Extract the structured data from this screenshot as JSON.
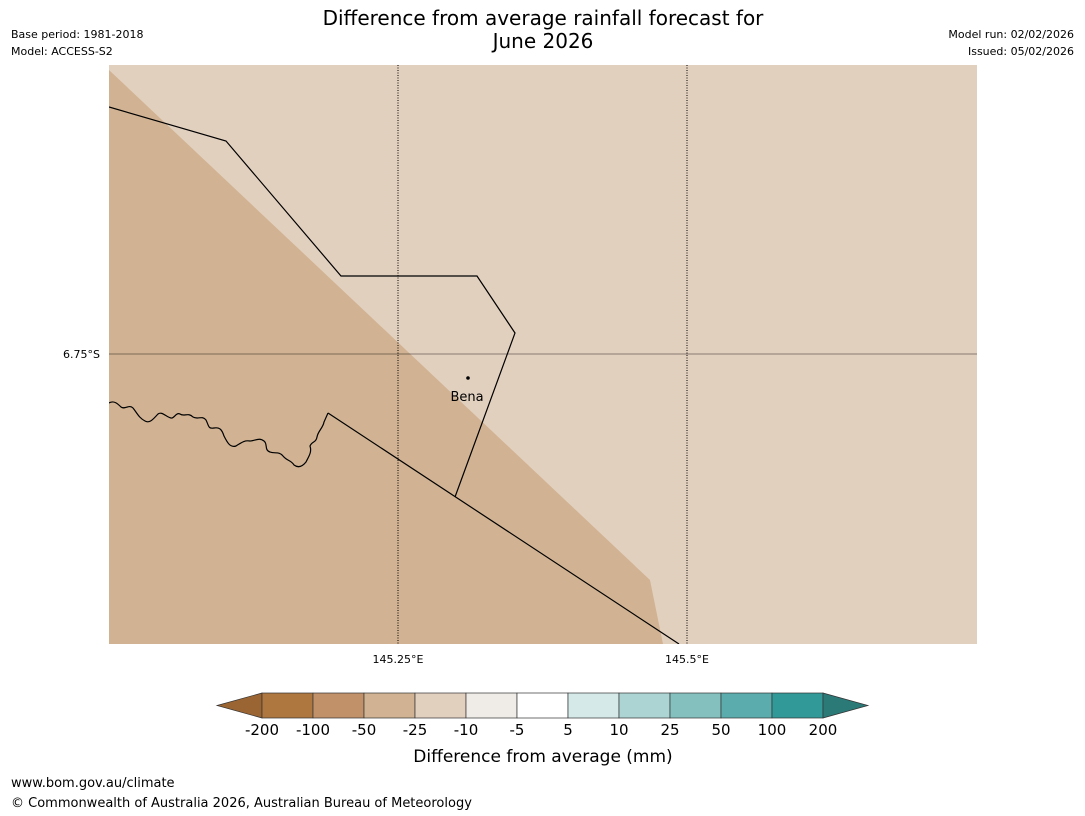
{
  "header": {
    "title_line1": "Difference from average rainfall forecast for",
    "title_line2": "June 2026",
    "base_period": "Base period: 1981-2018",
    "model": "Model: ACCESS-S2",
    "model_run": "Model run: 02/02/2026",
    "issued": "Issued: 05/02/2026"
  },
  "map": {
    "latitude_labels": [
      "6.75°S"
    ],
    "longitude_labels": [
      "145.25°E",
      "145.5°E"
    ],
    "places": [
      {
        "name": "Bena"
      }
    ],
    "colors": {
      "range_-50_to_-25": "#d1b393",
      "range_-25_to_-10": "#e2d0bf",
      "boundary_line": "#000000",
      "gridline": "#000000"
    }
  },
  "legend": {
    "title": "Difference from average (mm)",
    "tick_labels": [
      "-200",
      "-100",
      "-50",
      "-25",
      "-10",
      "-5",
      "5",
      "10",
      "25",
      "50",
      "100",
      "200"
    ],
    "colors": [
      "#9a6532",
      "#ae7740",
      "#c1926a",
      "#d1b393",
      "#e2d0bf",
      "#efebe6",
      "#ffffff",
      "#d5e9e9",
      "#acd4d3",
      "#84c1be",
      "#5aadac",
      "#319a98",
      "#2b7a78"
    ]
  },
  "footer": {
    "url": "www.bom.gov.au/climate",
    "copyright": "© Commonwealth of Australia 2026, Australian Bureau of Meteorology"
  }
}
